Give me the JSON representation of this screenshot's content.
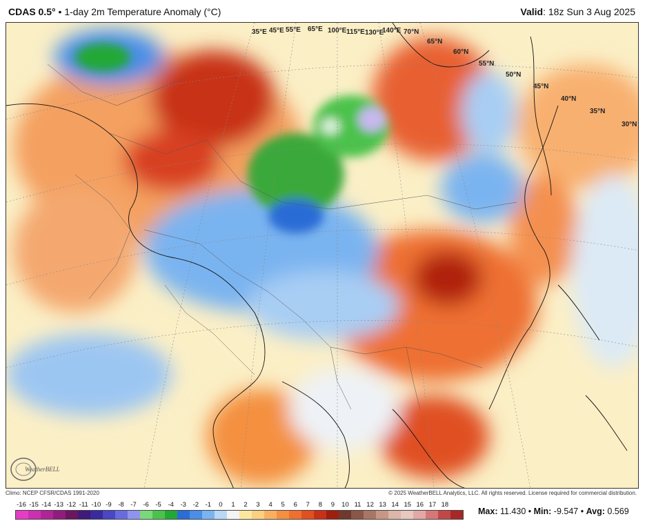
{
  "header": {
    "model": "CDAS 0.5°",
    "separator": "•",
    "title": "1-day 2m Temperature Anomaly (°C)",
    "valid_label": "Valid",
    "valid_time": "18z Sun 3 Aug 2025"
  },
  "map": {
    "region": "Asia",
    "longitude_labels": [
      "35°E",
      "45°E",
      "55°E",
      "65°E",
      "100°E",
      "115°E",
      "130°E",
      "140°E"
    ],
    "latitude_labels": [
      "70°N",
      "65°N",
      "60°N",
      "55°N",
      "50°N",
      "45°N",
      "40°N",
      "35°N",
      "30°N"
    ]
  },
  "footer": {
    "climo": "Climo: NCEP CFSR/CDAS 1991-2020",
    "copyright": "© 2025 WeatherBELL Analytics, LLC. All rights reserved. License required for commercial distribution."
  },
  "colorbar": {
    "ticks": [
      "-16",
      "-15",
      "-14",
      "-13",
      "-12",
      "-11",
      "-10",
      "-9",
      "-8",
      "-7",
      "-6",
      "-5",
      "-4",
      "-3",
      "-2",
      "-1",
      "0",
      "1",
      "2",
      "3",
      "4",
      "5",
      "6",
      "7",
      "8",
      "9",
      "10",
      "11",
      "12",
      "13",
      "14",
      "15",
      "16",
      "17",
      "18"
    ],
    "colors": [
      "#e63cc6",
      "#cc2fb0",
      "#b02596",
      "#8f1d7c",
      "#6c1560",
      "#3e1a7a",
      "#3a2a9e",
      "#4a46c4",
      "#6a6ae0",
      "#8e94ee",
      "#7ad87a",
      "#4cc24c",
      "#22a836",
      "#2b6cd6",
      "#4a8ee6",
      "#7ab4f0",
      "#b8d8f6",
      "#f4f4f4",
      "#fbe7a0",
      "#fbd080",
      "#f8b060",
      "#f49040",
      "#ee7030",
      "#e05020",
      "#c83018",
      "#a01e10",
      "#6e3a30",
      "#8a5648",
      "#a87664",
      "#c69686",
      "#dcb6a8",
      "#e8c8c0",
      "#e2a8a8",
      "#d67878",
      "#c24848",
      "#a82828"
    ],
    "logo_text": "WeatherBELL"
  },
  "stats": {
    "max_label": "Max:",
    "max": "11.430",
    "min_label": "Min:",
    "min": "-9.547",
    "avg_label": "Avg:",
    "avg": "0.569"
  }
}
